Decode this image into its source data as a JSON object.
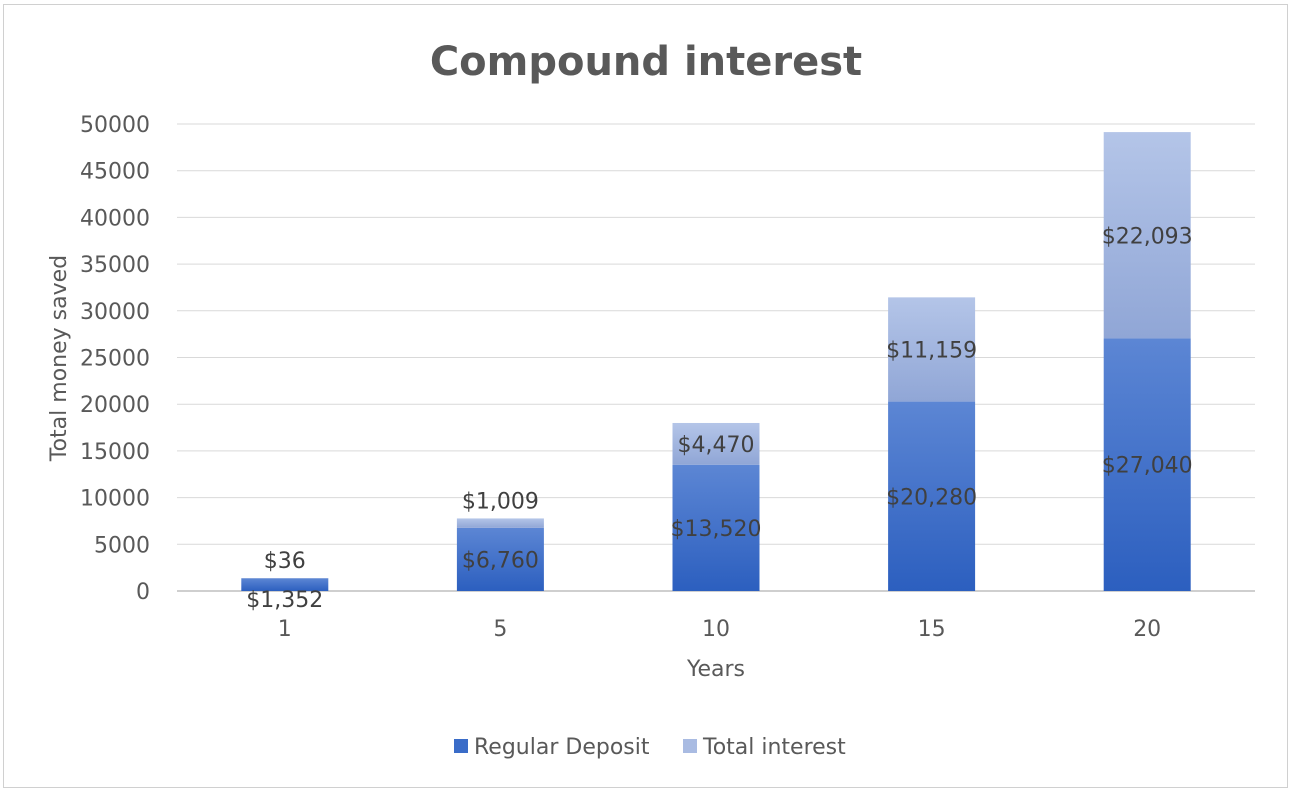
{
  "chart_data": {
    "type": "bar",
    "stacked": true,
    "title": "Compound interest",
    "xlabel": "Years",
    "ylabel": "Total money saved",
    "categories": [
      "1",
      "5",
      "10",
      "15",
      "20"
    ],
    "ylim": [
      0,
      50000
    ],
    "yticks": [
      "0",
      "5000",
      "10000",
      "15000",
      "20000",
      "25000",
      "30000",
      "35000",
      "40000",
      "45000",
      "50000"
    ],
    "grid": true,
    "legend_position": "bottom",
    "series": [
      {
        "name": "Regular Deposit",
        "color": "#3a6cc8",
        "values": [
          1352,
          6760,
          13520,
          20280,
          27040
        ],
        "labels": [
          "$1,352",
          "$6,760",
          "$13,520",
          "$20,280",
          "$27,040"
        ]
      },
      {
        "name": "Total interest",
        "color": "#a9bbe2",
        "values": [
          36,
          1009,
          4470,
          11159,
          22093
        ],
        "labels": [
          "$36",
          "$1,009",
          "$4,470",
          "$11,159",
          "$22,093"
        ]
      }
    ]
  }
}
